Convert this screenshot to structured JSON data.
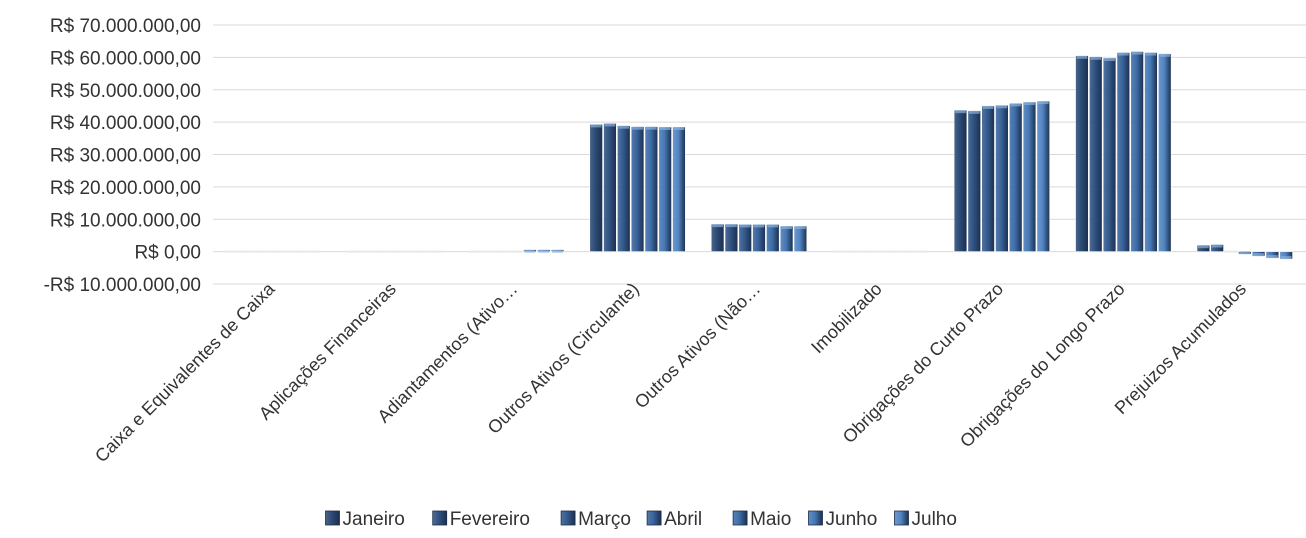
{
  "chart_data": {
    "type": "bar",
    "title": "",
    "xlabel": "",
    "ylabel": "",
    "categories": [
      "Caixa e Equivalentes de Caixa",
      "Aplicações Financeiras",
      "Adiantamentos (Ativo…",
      "Outros Ativos (Circulante)",
      "Outros Ativos (Não…",
      "Imobilizado",
      "Obrigações do Curto Prazo",
      "Obrigações do Longo Prazo",
      "Prejuizos Acumulados"
    ],
    "series": [
      {
        "name": "Janeiro",
        "color": "#2b4a75",
        "values": [
          0,
          0,
          0,
          39300000,
          8500000,
          0,
          43700000,
          60500000,
          2000000
        ]
      },
      {
        "name": "Fevereiro",
        "color": "#2f5282",
        "values": [
          0,
          0,
          0,
          39600000,
          8500000,
          0,
          43500000,
          60200000,
          2200000
        ]
      },
      {
        "name": "Março",
        "color": "#335a8e",
        "values": [
          0,
          0,
          0,
          38900000,
          8400000,
          0,
          45000000,
          59800000,
          300000
        ]
      },
      {
        "name": "Abril",
        "color": "#38639b",
        "values": [
          0,
          0,
          300000,
          38600000,
          8400000,
          0,
          45200000,
          61500000,
          -800000
        ]
      },
      {
        "name": "Maio",
        "color": "#3d6da8",
        "values": [
          0,
          0,
          600000,
          38600000,
          8400000,
          0,
          45800000,
          61800000,
          -1400000
        ]
      },
      {
        "name": "Junho",
        "color": "#4679b6",
        "values": [
          0,
          0,
          600000,
          38500000,
          7900000,
          0,
          46200000,
          61500000,
          -2000000
        ]
      },
      {
        "name": "Julho",
        "color": "#5286c3",
        "values": [
          0,
          0,
          600000,
          38500000,
          7900000,
          0,
          46500000,
          61100000,
          -2300000
        ]
      }
    ],
    "ylim": [
      -10000000,
      70000000
    ],
    "yticks": [
      -10000000,
      0,
      10000000,
      20000000,
      30000000,
      40000000,
      50000000,
      60000000,
      70000000
    ],
    "ytick_labels": [
      "-R$ 10.000.000,00",
      "R$ 0,00",
      "R$ 10.000.000,00",
      "R$ 20.000.000,00",
      "R$ 30.000.000,00",
      "R$ 40.000.000,00",
      "R$ 50.000.000,00",
      "R$ 60.000.000,00",
      "R$ 70.000.000,00"
    ],
    "grid": true,
    "legend": "bottom"
  }
}
